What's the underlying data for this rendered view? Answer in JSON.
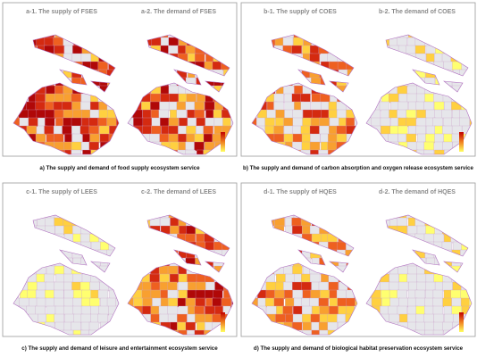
{
  "panels": [
    {
      "maps": [
        {
          "title": "a-1. The supply of FSES"
        },
        {
          "title": "a-2. The demand of FSES"
        }
      ],
      "caption": "a) The supply and demand of food supply ecosystem service"
    },
    {
      "maps": [
        {
          "title": "b-1. The supply of COES"
        },
        {
          "title": "b-2. The demand of COES"
        }
      ],
      "caption": "b) The supply and demand of carbon absorption and oxygen release ecosystem service"
    },
    {
      "maps": [
        {
          "title": "c-1. The supply of LEES"
        },
        {
          "title": "c-2. The demand of LEES"
        }
      ],
      "caption": "c) The supply and demand of leisure and entertainment ecosystem service"
    },
    {
      "maps": [
        {
          "title": "d-1. The supply of HQES"
        },
        {
          "title": "d-2. The demand of HQES"
        }
      ],
      "caption": "d) The supply and demand of biological habitat preservation ecosystem service"
    }
  ]
}
